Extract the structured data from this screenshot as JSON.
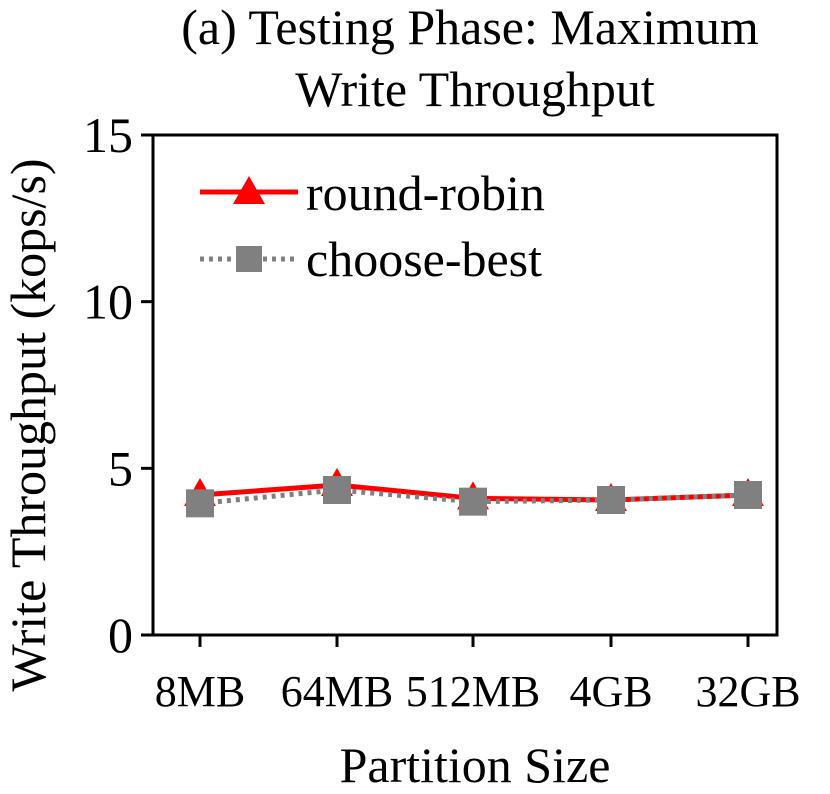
{
  "chart_data": {
    "type": "line",
    "title_lines": [
      "(a) Testing Phase: Maximum",
      "Write Throughput"
    ],
    "xlabel": "Partition Size",
    "ylabel": "Write Throughput (kops/s)",
    "categories": [
      "8MB",
      "64MB",
      "512MB",
      "4GB",
      "32GB"
    ],
    "ylim": [
      0,
      15
    ],
    "yticks": [
      "0",
      "5",
      "10",
      "15"
    ],
    "grid": false,
    "legend_position": "top-left",
    "series": [
      {
        "name": "round-robin",
        "values": [
          4.2,
          4.5,
          4.1,
          4.05,
          4.2
        ],
        "color": "#ff0000",
        "marker": "triangle",
        "line_style": "solid"
      },
      {
        "name": "choose-best",
        "values": [
          3.95,
          4.35,
          4.0,
          4.05,
          4.2
        ],
        "color": "#808080",
        "marker": "square",
        "line_style": "dotted"
      }
    ]
  }
}
